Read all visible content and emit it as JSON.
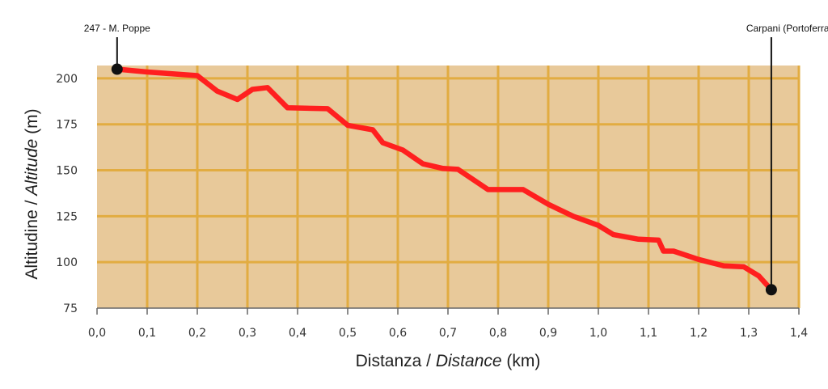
{
  "chart_data": {
    "type": "line",
    "xlabel": "Distanza / Distance (km)",
    "xlabel_parts": {
      "a": "Distanza / ",
      "b": "Distance",
      "c": " (km)"
    },
    "ylabel": "Altitudine / Altitude (m)",
    "ylabel_parts": {
      "a": "Altitudine / ",
      "b": "Altitude",
      "c": " (m)"
    },
    "xlim": [
      0,
      1.4
    ],
    "ylim": [
      75,
      207
    ],
    "x_ticks": [
      0,
      0.1,
      0.2,
      0.3,
      0.4,
      0.5,
      0.6,
      0.7,
      0.8,
      0.9,
      1.0,
      1.1,
      1.2,
      1.3,
      1.4
    ],
    "x_tick_labels": [
      "0,0",
      "0,1",
      "0,2",
      "0,3",
      "0,4",
      "0,5",
      "0,6",
      "0,7",
      "0,8",
      "0,9",
      "1,0",
      "1,1",
      "1,2",
      "1,3",
      "1,4"
    ],
    "y_ticks": [
      75,
      100,
      125,
      150,
      175,
      200
    ],
    "y_tick_labels": [
      "75",
      "100",
      "125",
      "150",
      "175",
      "200"
    ],
    "grid": true,
    "series": [
      {
        "x": [
          0.04,
          0.1,
          0.2,
          0.24,
          0.28,
          0.31,
          0.34,
          0.38,
          0.46,
          0.5,
          0.55,
          0.57,
          0.61,
          0.65,
          0.69,
          0.72,
          0.78,
          0.85,
          0.9,
          0.95,
          1.0,
          1.03,
          1.08,
          1.12,
          1.13,
          1.15,
          1.2,
          1.25,
          1.29,
          1.32,
          1.345
        ],
        "y": [
          205,
          203.5,
          201.5,
          193,
          188.5,
          194,
          195,
          184,
          183.5,
          174.5,
          172,
          165,
          161,
          153.5,
          151,
          150.5,
          139.5,
          139.5,
          131.5,
          125,
          120,
          115,
          112.5,
          112,
          106,
          106,
          101.5,
          98,
          97.5,
          92.5,
          85
        ]
      }
    ],
    "annotations": [
      {
        "label": "247 - M. Poppe",
        "x": 0.04,
        "y": 205
      },
      {
        "label": "Carpani (Portoferraio)",
        "x": 1.345,
        "y": 85
      }
    ],
    "colors": {
      "plot_fill": "#e8c99a",
      "grid": "#e2ac41",
      "line": "#ff1f1f",
      "marker": "#111111",
      "axis": "#666666"
    }
  }
}
